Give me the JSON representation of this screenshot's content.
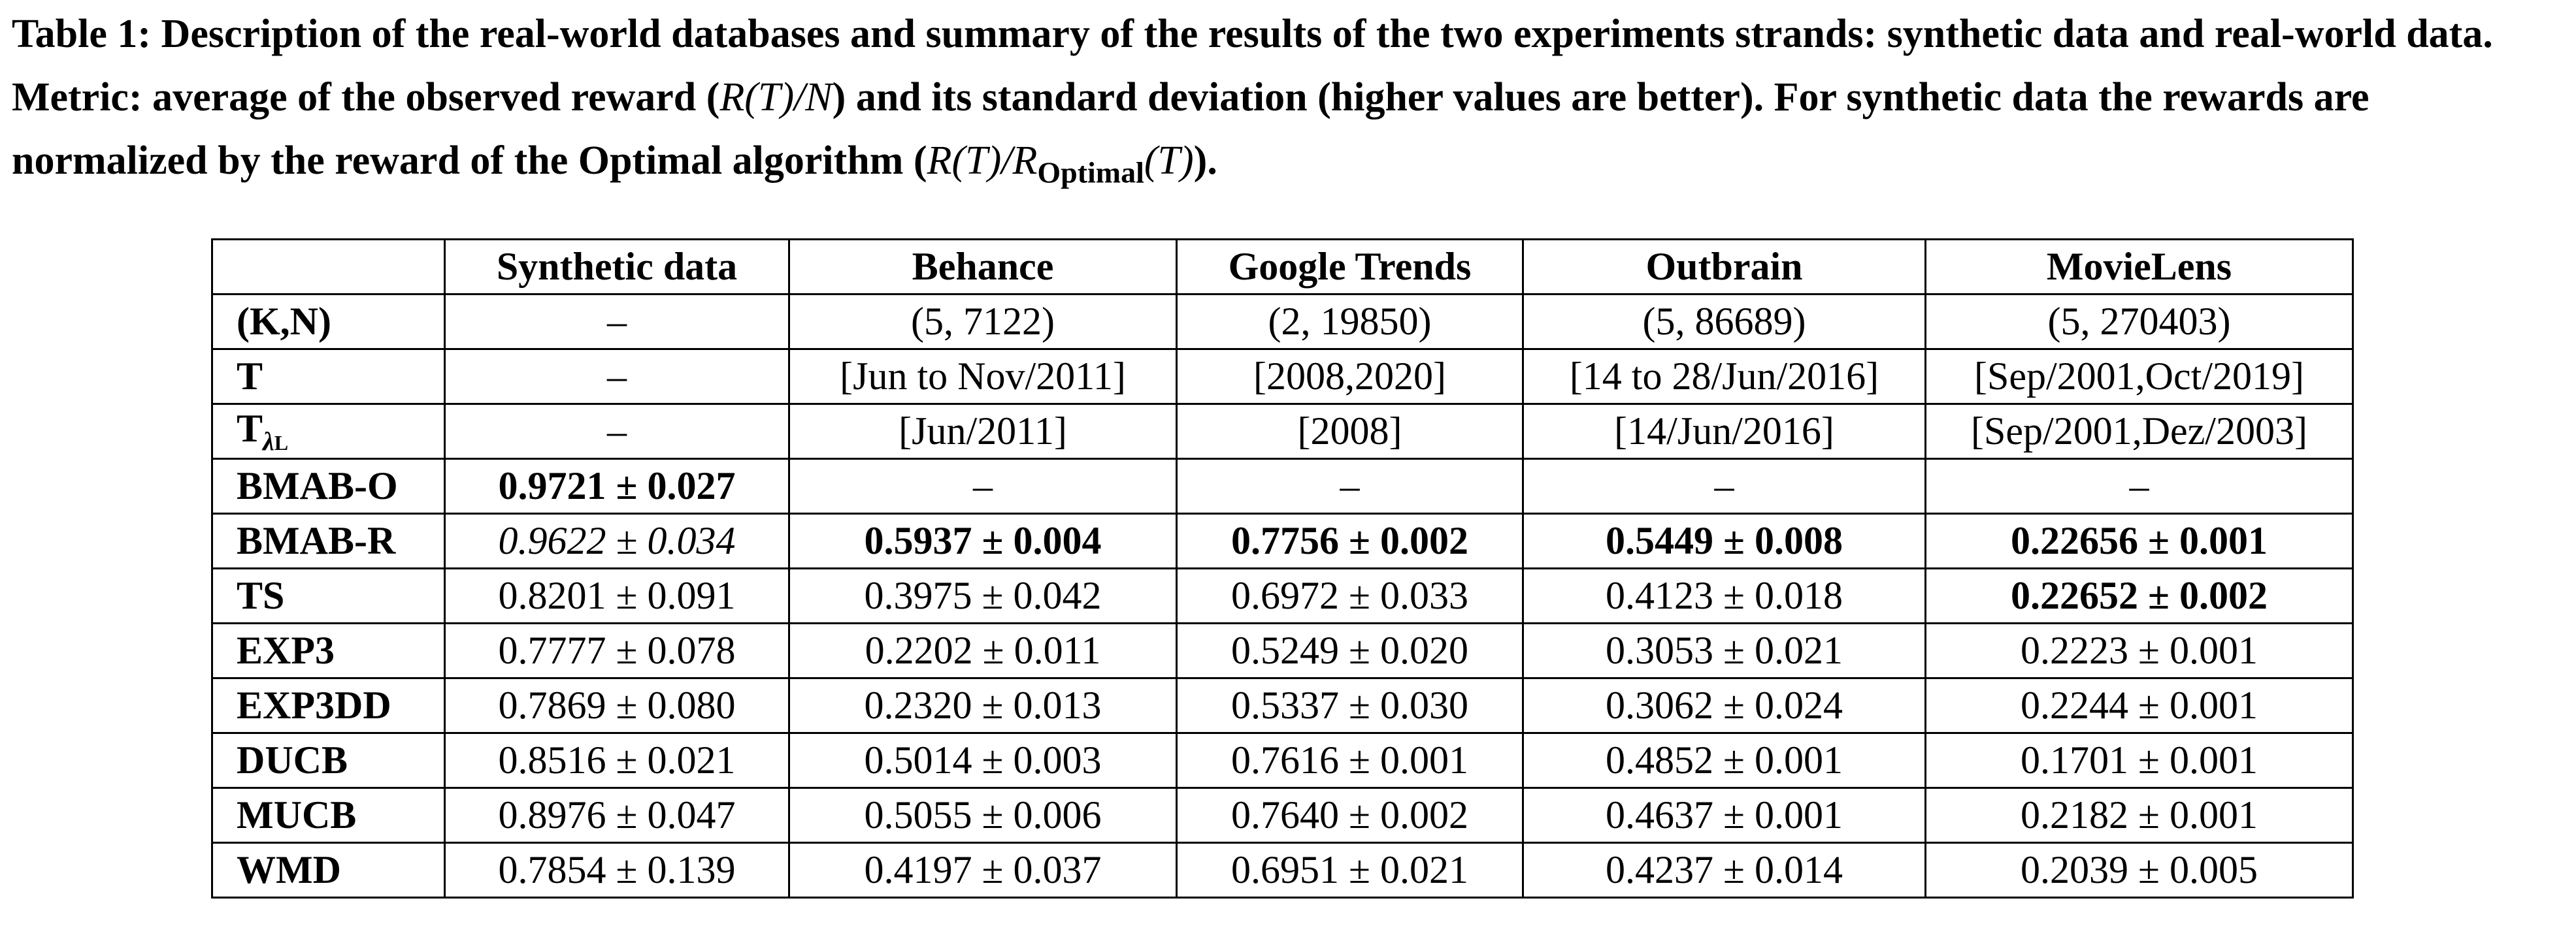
{
  "caption": {
    "label": "Table 1:",
    "text_part1": "Description of the real-world databases and summary of the results of the two experiments strands: synthetic data and real-world data. Metric: average of the observed reward (",
    "math1": "R(T)/N",
    "text_part2": ") and its standard deviation (higher values are better). For synthetic data the rewards are normalized by the reward of the Optimal algorithm (",
    "math2_num": "R(T)/R",
    "math2_sub": "Optimal",
    "math2_tail": "(T)",
    "text_part3": ")."
  },
  "table": {
    "headers": [
      "",
      "Synthetic data",
      "Behance",
      "Google Trends",
      "Outbrain",
      "MovieLens"
    ],
    "rows": [
      {
        "label": "(K,N)",
        "cells": [
          "–",
          "(5, 7122)",
          "(2, 19850)",
          "(5, 86689)",
          "(5, 270403)"
        ]
      },
      {
        "label": "T",
        "cells": [
          "–",
          "[Jun to Nov/2011]",
          "[2008,2020]",
          "[14 to 28/Jun/2016]",
          "[Sep/2001,Oct/2019]"
        ]
      },
      {
        "label": "T",
        "label_sub": "λ",
        "label_sub2": "L",
        "cells": [
          "–",
          "[Jun/2011]",
          "[2008]",
          "[14/Jun/2016]",
          "[Sep/2001,Dez/2003]"
        ]
      },
      {
        "label": "BMAB-O",
        "cells": [
          "0.9721 ± 0.027",
          "–",
          "–",
          "–",
          "–"
        ]
      },
      {
        "label": "BMAB-R",
        "cells": [
          "0.9622 ± 0.034",
          "0.5937 ± 0.004",
          "0.7756 ± 0.002",
          "0.5449 ± 0.008",
          "0.22656 ± 0.001"
        ]
      },
      {
        "label": "TS",
        "cells": [
          "0.8201 ± 0.091",
          "0.3975 ± 0.042",
          "0.6972 ± 0.033",
          "0.4123 ± 0.018",
          "0.22652 ± 0.002"
        ]
      },
      {
        "label": "EXP3",
        "cells": [
          "0.7777 ± 0.078",
          "0.2202 ± 0.011",
          "0.5249 ± 0.020",
          "0.3053 ± 0.021",
          "0.2223 ± 0.001"
        ]
      },
      {
        "label": "EXP3DD",
        "cells": [
          "0.7869 ± 0.080",
          "0.2320 ± 0.013",
          "0.5337 ± 0.030",
          "0.3062 ± 0.024",
          "0.2244 ± 0.001"
        ]
      },
      {
        "label": "DUCB",
        "cells": [
          "0.8516 ± 0.021",
          "0.5014 ± 0.003",
          "0.7616 ± 0.001",
          "0.4852 ± 0.001",
          "0.1701 ± 0.001"
        ]
      },
      {
        "label": "MUCB",
        "cells": [
          "0.8976 ± 0.047",
          "0.5055 ± 0.006",
          "0.7640 ± 0.002",
          "0.4637 ± 0.001",
          "0.2182 ± 0.001"
        ]
      },
      {
        "label": "WMD",
        "cells": [
          "0.7854 ± 0.139",
          "0.4197 ± 0.037",
          "0.6951 ± 0.021",
          "0.4237 ± 0.014",
          "0.2039 ± 0.005"
        ]
      }
    ]
  }
}
